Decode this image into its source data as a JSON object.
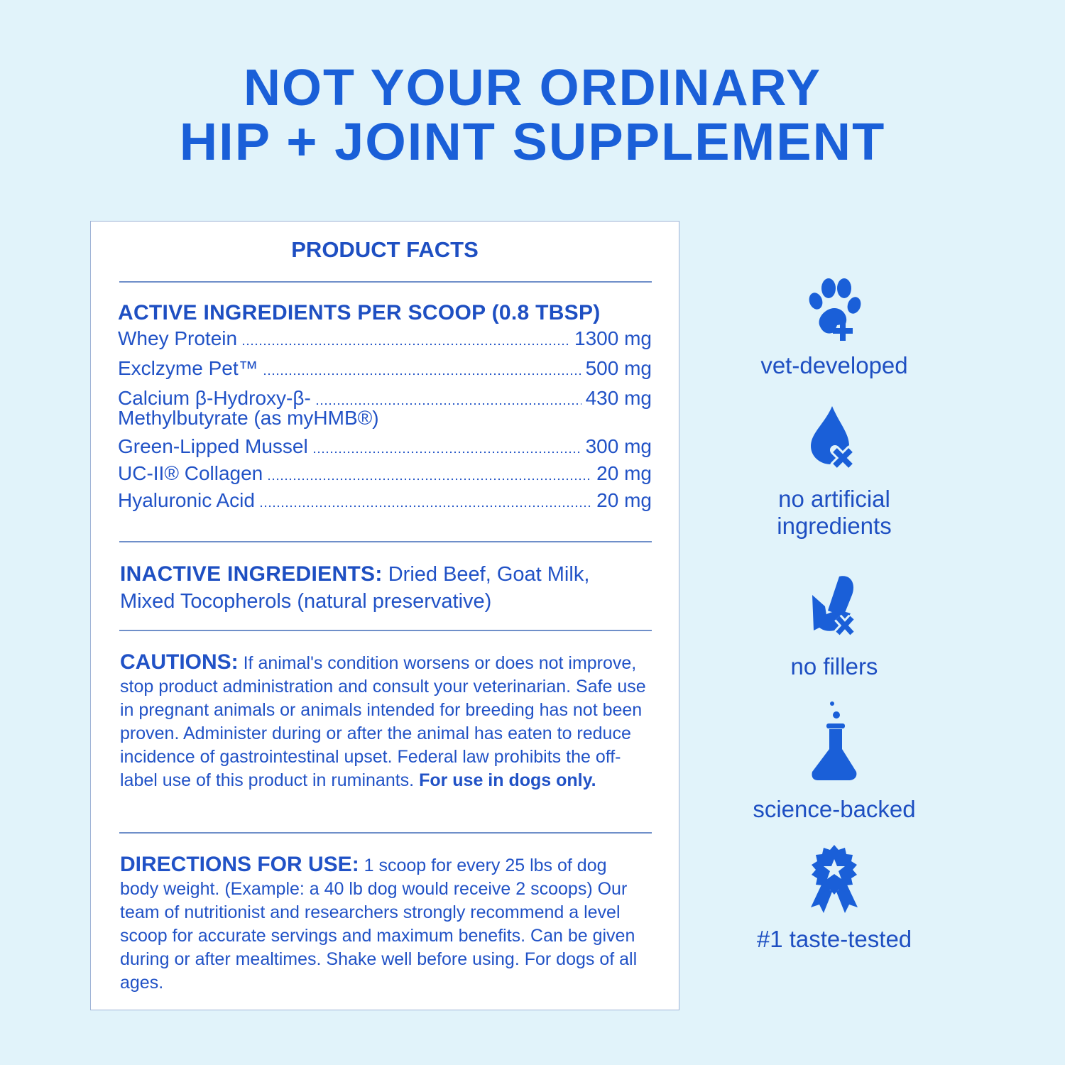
{
  "headline": {
    "line1": "NOT YOUR ORDINARY",
    "line2": "HIP + JOINT SUPPLEMENT"
  },
  "facts": {
    "title": "PRODUCT FACTS",
    "active_heading": "ACTIVE INGREDIENTS PER SCOOP  (0.8 TBSP)",
    "active": [
      {
        "name": "Whey Protein",
        "amount": "1300 mg"
      },
      {
        "name": "Exclzyme Pet™",
        "amount": "500 mg"
      },
      {
        "name": "Calcium β-Hydroxy-β-",
        "name_cont": "Methylbutyrate (as myHMB®)",
        "amount": "430 mg"
      },
      {
        "name": "Green-Lipped Mussel",
        "amount": "300 mg"
      },
      {
        "name": "UC-II® Collagen",
        "amount": "20 mg"
      },
      {
        "name": "Hyaluronic Acid",
        "amount": "20 mg"
      }
    ],
    "inactive_heading": "INACTIVE INGREDIENTS:",
    "inactive_text": " Dried Beef, Goat Milk, Mixed Tocopherols (natural preservative)",
    "cautions_heading": "CAUTIONS:",
    "cautions_text": " If animal's condition worsens or does not improve, stop product administration and consult your veterinarian. Safe use in pregnant animals or animals intended for breeding has not been proven. Administer during or after the animal has eaten to reduce incidence of gastrointestinal upset. Federal law prohibits the off-label use of this product in ruminants. ",
    "cautions_bold": "For use in dogs only.",
    "directions_heading": "DIRECTIONS FOR USE:",
    "directions_text": " 1 scoop for every 25 lbs of dog body weight. (Example: a 40 lb dog would receive 2 scoops) Our team of nutritionist and researchers strongly recommend a level scoop for accurate servings and maximum benefits. Can be given during or after mealtimes. Shake well before using. For dogs of all ages."
  },
  "features": [
    {
      "icon": "paw-plus-icon",
      "label": "vet-developed"
    },
    {
      "icon": "drop-x-icon",
      "label": "no artificial ingredients"
    },
    {
      "icon": "corn-x-icon",
      "label": "no fillers"
    },
    {
      "icon": "flask-icon",
      "label": "science-backed"
    },
    {
      "icon": "award-ribbon-icon",
      "label": "#1 taste-tested"
    }
  ],
  "colors": {
    "background": "#e1f3fa",
    "accent": "#1a5fd8",
    "text": "#2152c6"
  }
}
